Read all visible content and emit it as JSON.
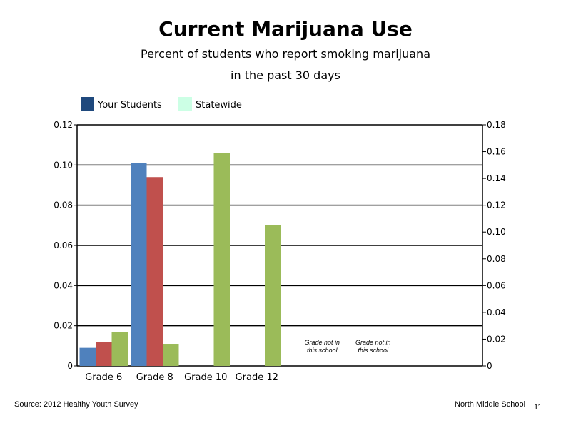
{
  "title": "Current Marijuana Use",
  "subtitle_line1": "Percent of students who report smoking marijuana",
  "subtitle_line2": "in the past 30 days",
  "footer": {
    "source": "Source: 2012 Healthy Youth Survey",
    "school": "North Middle School",
    "page_number": "11"
  },
  "chart_data": {
    "type": "bar",
    "categories": [
      "Grade 6",
      "Grade 8",
      "Grade 10",
      "Grade 12",
      "",
      ""
    ],
    "legend": [
      {
        "name": "Your Students",
        "color": "#1F497D"
      },
      {
        "name": "Statewide",
        "color": "#CCFFE5"
      }
    ],
    "series": [
      {
        "color": "#4F81BD",
        "values": [
          0.009,
          0.101,
          null,
          null,
          null,
          null
        ]
      },
      {
        "color": "#C0504D",
        "values": [
          0.012,
          0.094,
          null,
          null,
          null,
          null
        ]
      },
      {
        "color": "#9BBB59",
        "values": [
          0.017,
          0.011,
          0.106,
          0.07,
          null,
          null
        ]
      }
    ],
    "annotations": [
      {
        "category_index": 4,
        "text": [
          "Grade not in",
          "this school"
        ]
      },
      {
        "category_index": 5,
        "text": [
          "Grade not in",
          "this school"
        ]
      }
    ],
    "y_left": {
      "ylim": [
        0,
        0.12
      ],
      "ticks": [
        "0",
        "0.02",
        "0.04",
        "0.06",
        "0.08",
        "0.10",
        "0.12"
      ]
    },
    "y_right": {
      "ylim": [
        0,
        0.18
      ],
      "ticks": [
        "0",
        "0.02",
        "0.04",
        "0.06",
        "0.08",
        "0.10",
        "0.12",
        "0.14",
        "0.16",
        "0.18"
      ]
    },
    "grid": true,
    "legend_position": "top-left"
  }
}
